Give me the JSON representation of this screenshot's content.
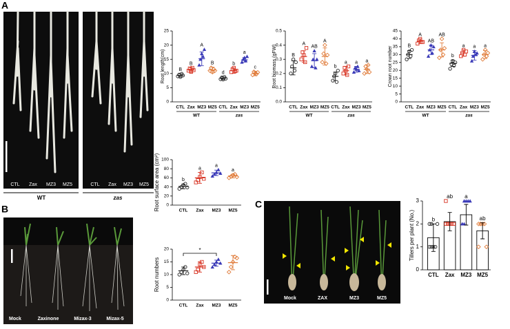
{
  "panels": [
    {
      "letter": "A",
      "photo_labels": [
        "CTL",
        "Zax",
        "MZ3",
        "MZ5",
        "CTL",
        "Zax",
        "MZ3",
        "MZ5"
      ],
      "photo_groups": [
        "WT",
        "zas"
      ]
    },
    {
      "letter": "B",
      "photo_labels": [
        "Mock",
        "Zaxinone",
        "Mizax-3",
        "Mizax-5"
      ]
    },
    {
      "letter": "C",
      "photo_labels": [
        "Mock",
        "ZAX",
        "MZ3",
        "MZ5"
      ]
    }
  ],
  "chart_data": [
    {
      "type": "dotplot",
      "ylabel": "Root length(cm)",
      "categories": [
        "CTL",
        "Zax",
        "MZ3",
        "MZ5",
        "CTL",
        "Zax",
        "MZ3",
        "MZ5"
      ],
      "groups": [
        "WT",
        "zas"
      ],
      "values": [
        9.3,
        11.2,
        15.2,
        11.2,
        8.3,
        11,
        14.8,
        10
      ],
      "errors": [
        0.6,
        0.8,
        2.4,
        1,
        0.5,
        0.9,
        0.8,
        0.8
      ],
      "points": [
        [
          9,
          9.6,
          8.8,
          9.9,
          9.3
        ],
        [
          11,
          11.8,
          10.6,
          12,
          11.2
        ],
        [
          13,
          15,
          17,
          16,
          18.5
        ],
        [
          11,
          12,
          10.5,
          11.5,
          11
        ],
        [
          8,
          8.6,
          7.9,
          8.8,
          8.2
        ],
        [
          10.5,
          11.5,
          12,
          10.8,
          11
        ],
        [
          14,
          15,
          15.6,
          14.5,
          16
        ],
        [
          9.5,
          10.6,
          10,
          9.8,
          10.4
        ]
      ],
      "letters": [
        "B",
        "B",
        "A",
        "B",
        "d",
        "b",
        "a",
        "c"
      ],
      "colors": [
        "#222222",
        "#d7301f",
        "#3a3ab8",
        "#e07b39",
        "#222222",
        "#d7301f",
        "#3a3ab8",
        "#e07b39"
      ],
      "markers": [
        "circle",
        "square",
        "triangle",
        "diamond",
        "circle",
        "square",
        "triangle",
        "diamond"
      ],
      "ylim": [
        0,
        25
      ],
      "yticks": [
        0,
        5,
        10,
        15,
        20,
        25
      ]
    },
    {
      "type": "dotplot",
      "ylabel": "Root biomass (gFW)",
      "categories": [
        "CTL",
        "Zax",
        "MZ3",
        "MZ5",
        "CTL",
        "Zax",
        "MZ3",
        "MZ5"
      ],
      "groups": [
        "WT",
        "zas"
      ],
      "values": [
        0.24,
        0.32,
        0.29,
        0.32,
        0.18,
        0.22,
        0.23,
        0.23
      ],
      "errors": [
        0.05,
        0.04,
        0.05,
        0.06,
        0.03,
        0.03,
        0.02,
        0.03
      ],
      "points": [
        [
          0.2,
          0.25,
          0.3,
          0.22,
          0.28
        ],
        [
          0.3,
          0.35,
          0.33,
          0.28,
          0.38
        ],
        [
          0.25,
          0.3,
          0.36,
          0.24,
          0.3
        ],
        [
          0.28,
          0.34,
          0.4,
          0.27,
          0.33
        ],
        [
          0.15,
          0.18,
          0.2,
          0.14,
          0.22
        ],
        [
          0.2,
          0.24,
          0.22,
          0.19,
          0.25
        ],
        [
          0.21,
          0.24,
          0.23,
          0.25,
          0.22
        ],
        [
          0.2,
          0.25,
          0.23,
          0.26,
          0.21
        ]
      ],
      "letters": [
        "B",
        "A",
        "AB",
        "A",
        "b",
        "a",
        "a",
        "a"
      ],
      "colors": [
        "#222222",
        "#d7301f",
        "#3a3ab8",
        "#e07b39",
        "#222222",
        "#d7301f",
        "#3a3ab8",
        "#e07b39"
      ],
      "markers": [
        "circle",
        "square",
        "triangle",
        "diamond",
        "circle",
        "square",
        "triangle",
        "diamond"
      ],
      "ylim": [
        0,
        0.5
      ],
      "yticks": [
        {
          "value": 0,
          "label": "0.0"
        },
        0.1,
        0.2,
        0.3,
        0.4,
        0.5
      ]
    },
    {
      "type": "dotplot",
      "ylabel": "Crown root number",
      "categories": [
        "CTL",
        "Zax",
        "MZ3",
        "MZ5",
        "CTL",
        "Zax",
        "MZ3",
        "MZ5"
      ],
      "groups": [
        "WT",
        "zas"
      ],
      "values": [
        30,
        38.5,
        33,
        33,
        24.5,
        31,
        29.5,
        30
      ],
      "errors": [
        2.5,
        1.5,
        3,
        4.5,
        2,
        2,
        3,
        2.5
      ],
      "points": [
        [
          27,
          30,
          32,
          29,
          33
        ],
        [
          37,
          39,
          40,
          38,
          38
        ],
        [
          29,
          33,
          36,
          31,
          35
        ],
        [
          28,
          33,
          40,
          30,
          34
        ],
        [
          21,
          24,
          26,
          23,
          25
        ],
        [
          29,
          31,
          33,
          30,
          32
        ],
        [
          26,
          29,
          32,
          30,
          31
        ],
        [
          27,
          30,
          33,
          29,
          31
        ]
      ],
      "letters": [
        "B",
        "A",
        "AB",
        "AB",
        "b",
        "a",
        "a",
        "a"
      ],
      "colors": [
        "#222222",
        "#d7301f",
        "#3a3ab8",
        "#e07b39",
        "#222222",
        "#d7301f",
        "#3a3ab8",
        "#e07b39"
      ],
      "markers": [
        "circle",
        "square",
        "triangle",
        "diamond",
        "circle",
        "square",
        "triangle",
        "diamond"
      ],
      "ylim": [
        0,
        45
      ],
      "yticks": [
        0,
        5,
        10,
        15,
        20,
        25,
        30,
        35,
        40,
        45
      ]
    },
    {
      "type": "dotplot",
      "ylabel": "Root surface area (cm²)",
      "categories": [
        "CTL",
        "Zax",
        "MZ3",
        "MZ5"
      ],
      "values": [
        41,
        60,
        71,
        64
      ],
      "errors": [
        5,
        12,
        6,
        4
      ],
      "points": [
        [
          36,
          40,
          44,
          47,
          39
        ],
        [
          50,
          55,
          62,
          72,
          58
        ],
        [
          64,
          68,
          72,
          78,
          70
        ],
        [
          60,
          63,
          66,
          68,
          62
        ]
      ],
      "letters": [
        "b",
        "a",
        "a",
        "a"
      ],
      "colors": [
        "#222222",
        "#d7301f",
        "#3a3ab8",
        "#e07b39"
      ],
      "markers": [
        "circle",
        "square",
        "triangle",
        "diamond"
      ],
      "ylim": [
        0,
        100
      ],
      "yticks": [
        0,
        20,
        40,
        60,
        80,
        100
      ]
    },
    {
      "type": "dotplot",
      "ylabel": "Root numbers",
      "categories": [
        "CTL",
        "Zax",
        "MZ3",
        "MZ5"
      ],
      "annotation": "*",
      "values": [
        11.5,
        13,
        14.5,
        14.7
      ],
      "errors": [
        1.5,
        2,
        1.2,
        2.8
      ],
      "points": [
        [
          10,
          11,
          12,
          13,
          10.5
        ],
        [
          11,
          12,
          14,
          15,
          13
        ],
        [
          13,
          14,
          15,
          16,
          14.5
        ],
        [
          11,
          13,
          15,
          17,
          16.5
        ]
      ],
      "colors": [
        "#222222",
        "#d7301f",
        "#3a3ab8",
        "#e07b39"
      ],
      "markers": [
        "circle",
        "square",
        "triangle",
        "diamond"
      ],
      "ylim": [
        0,
        20
      ],
      "yticks": [
        0,
        5,
        10,
        15,
        20
      ]
    },
    {
      "type": "bar",
      "ylabel": "Tillers per plant (No.)",
      "categories": [
        "CTL",
        "Zax",
        "MZ3",
        "MZ5"
      ],
      "values": [
        1.4,
        2.1,
        2.4,
        1.7
      ],
      "errors": [
        0.6,
        0.4,
        0.45,
        0.35
      ],
      "points": [
        [
          1,
          1,
          1,
          1,
          2,
          2,
          2
        ],
        [
          2,
          2,
          2,
          2,
          2,
          3,
          2
        ],
        [
          2,
          2,
          3,
          3,
          3,
          2,
          3
        ],
        [
          1,
          2,
          2,
          2,
          1,
          2,
          2
        ]
      ],
      "letters": [
        "b",
        "ab",
        "a",
        "ab"
      ],
      "colors": [
        "#222222",
        "#d7301f",
        "#3a3ab8",
        "#e07b39"
      ],
      "markers": [
        "circle",
        "square",
        "triangle",
        "diamond"
      ],
      "ylim": [
        0,
        3
      ],
      "yticks": [
        0,
        1,
        2,
        3
      ]
    }
  ]
}
